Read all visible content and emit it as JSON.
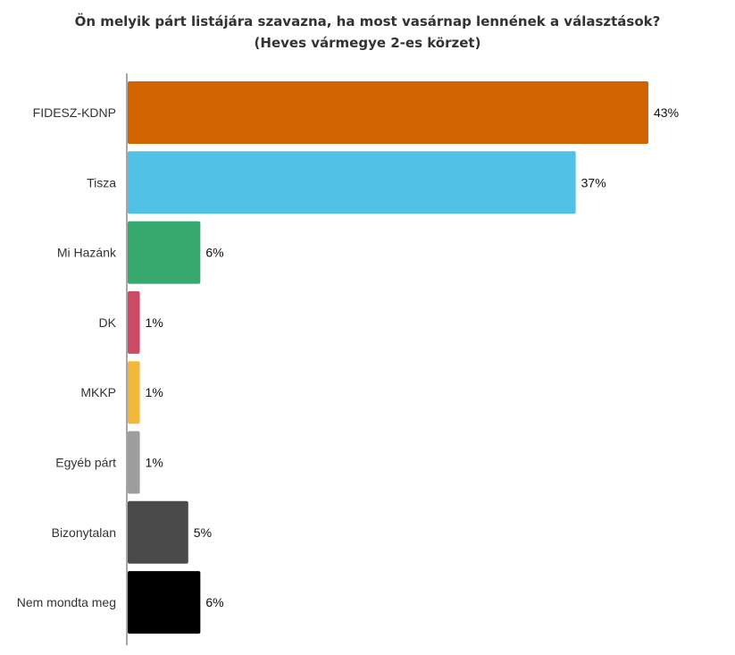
{
  "chart_data": {
    "type": "bar",
    "orientation": "horizontal",
    "title": "Ön melyik párt listájára szavazna, ha most vasárnap lennének a választások?",
    "subtitle": "(Heves vármegye 2-es körzet)",
    "categories": [
      "FIDESZ-KDNP",
      "Tisza",
      "Mi Hazánk",
      "DK",
      "MKKP",
      "Egyéb párt",
      "Bizonytalan",
      "Nem mondta meg"
    ],
    "values": [
      43,
      37,
      6,
      1,
      1,
      1,
      5,
      6
    ],
    "value_labels": [
      "43%",
      "37%",
      "6%",
      "1%",
      "1%",
      "1%",
      "5%",
      "6%"
    ],
    "colors": [
      "#d26400",
      "#50c2e6",
      "#37a86e",
      "#cc4a63",
      "#f1b93c",
      "#9e9e9e",
      "#4a4a4a",
      "#000000"
    ],
    "xlim": [
      0,
      43
    ],
    "grid": false,
    "legend": "none"
  }
}
